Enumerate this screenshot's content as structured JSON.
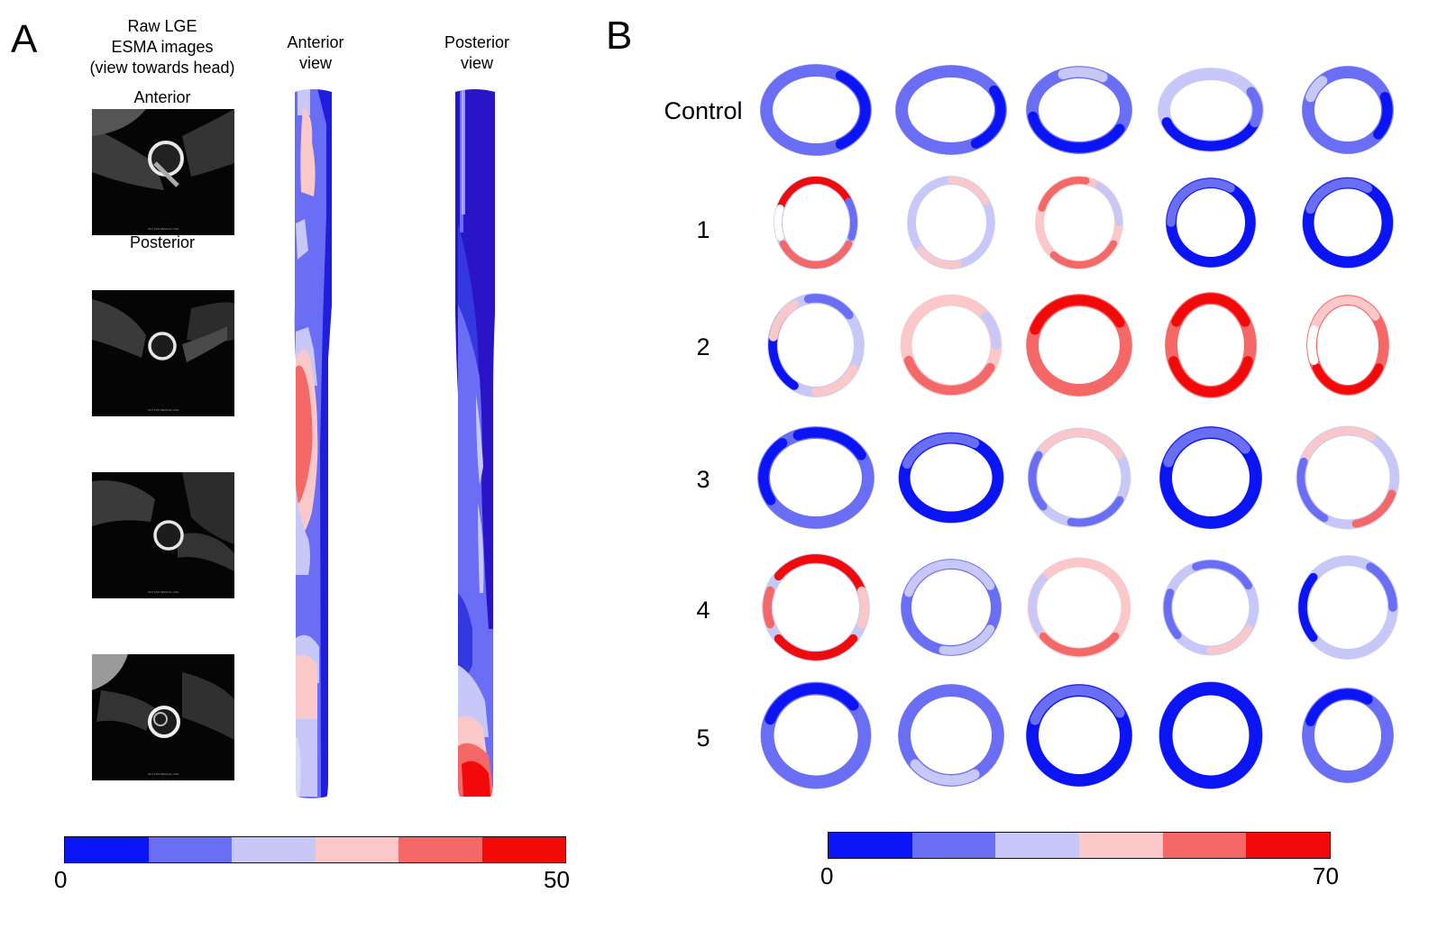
{
  "panel_a": {
    "letter": "A",
    "raw_title_lines": [
      "Raw LGE",
      "ESMA images",
      "(view towards head)"
    ],
    "anterior_label": "Anterior",
    "posterior_label": "Posterior",
    "anterior_view_lines": [
      "Anterior",
      "view"
    ],
    "posterior_view_lines": [
      "Posterior",
      "view"
    ],
    "scalebar_min": "0",
    "scalebar_max": "50",
    "image_watermark": "NOT FOR MEDICAL USE"
  },
  "panel_b": {
    "letter": "B",
    "row_labels": [
      "Control",
      "1",
      "2",
      "3",
      "4",
      "5"
    ],
    "scalebar_min": "0",
    "scalebar_max": "70"
  },
  "colors": {
    "scale": [
      "#0a14f5",
      "#6a6ef5",
      "#c8c8f8",
      "#fac8c8",
      "#f56868",
      "#f20a0a"
    ],
    "dark_blue": "#2a14c8"
  }
}
